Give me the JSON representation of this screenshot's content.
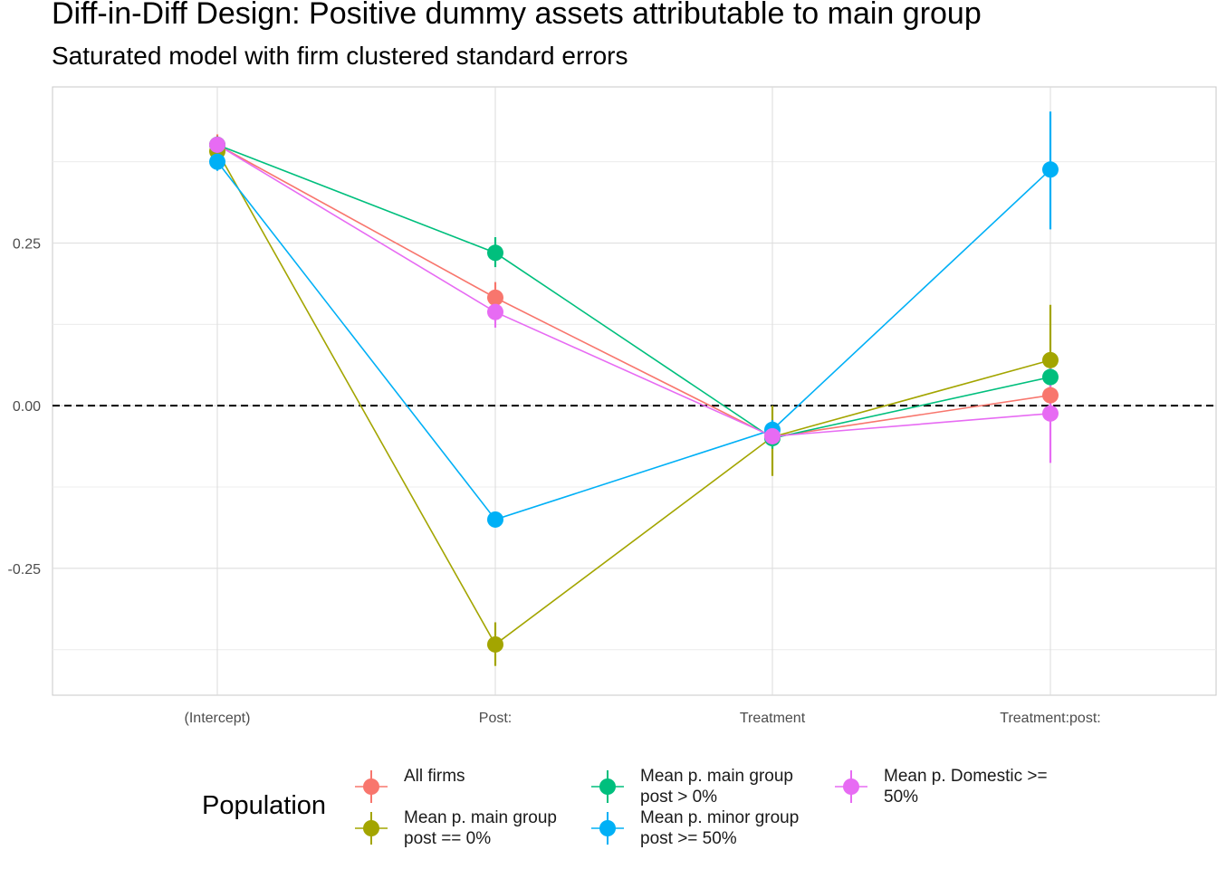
{
  "chart_data": {
    "type": "line",
    "title": "Diff-in-Diff Design: Positive dummy assets attributable to main group",
    "subtitle": "Saturated model with firm clustered standard errors",
    "xlabel": "",
    "ylabel": "",
    "categories": [
      "(Intercept)",
      "Post:",
      "Treatment",
      "Treatment:post:"
    ],
    "y_ticks": [
      -0.25,
      0.0,
      0.25
    ],
    "y_tick_labels": [
      "-0.25",
      "0.00",
      "0.25"
    ],
    "ylim": [
      -0.445,
      0.49
    ],
    "grid": true,
    "reference_line": 0,
    "legend": {
      "title": "Population",
      "placement": "bottom"
    },
    "series": [
      {
        "name": "All firms",
        "label_lines": [
          "All firms"
        ],
        "color": "#F8766D",
        "values": [
          0.401,
          0.166,
          -0.048,
          0.016
        ],
        "ci_low": [
          0.385,
          0.142,
          -0.062,
          0.005
        ],
        "ci_high": [
          0.417,
          0.19,
          -0.034,
          0.027
        ]
      },
      {
        "name": "Mean p. main group post == 0%",
        "label_lines": [
          "Mean p. main group",
          "post == 0%"
        ],
        "color": "#A3A500",
        "values": [
          0.391,
          -0.367,
          -0.048,
          0.07
        ],
        "ci_low": [
          0.368,
          -0.4,
          -0.108,
          -0.015
        ],
        "ci_high": [
          0.414,
          -0.333,
          0.0,
          0.155
        ]
      },
      {
        "name": "Mean p. main group post > 0%",
        "label_lines": [
          "Mean p. main group",
          "post > 0%"
        ],
        "color": "#00BF7D",
        "values": [
          0.401,
          0.235,
          -0.05,
          0.044
        ],
        "ci_low": [
          0.388,
          0.213,
          -0.066,
          0.03
        ],
        "ci_high": [
          0.414,
          0.259,
          -0.034,
          0.058
        ]
      },
      {
        "name": "Mean p. minor group post >= 50%",
        "label_lines": [
          "Mean p. minor group",
          "post >= 50%"
        ],
        "color": "#00B0F6",
        "values": [
          0.375,
          -0.175,
          -0.037,
          0.363
        ],
        "ci_low": [
          0.361,
          -0.184,
          -0.052,
          0.271
        ],
        "ci_high": [
          0.389,
          -0.166,
          -0.022,
          0.452
        ]
      },
      {
        "name": "Mean p. Domestic >= 50%",
        "label_lines": [
          "Mean p. Domestic >=",
          "50%"
        ],
        "color": "#E76BF3",
        "values": [
          0.401,
          0.144,
          -0.047,
          -0.012
        ],
        "ci_low": [
          0.39,
          0.12,
          -0.06,
          -0.088
        ],
        "ci_high": [
          0.412,
          0.168,
          -0.034,
          0.064
        ]
      }
    ]
  }
}
